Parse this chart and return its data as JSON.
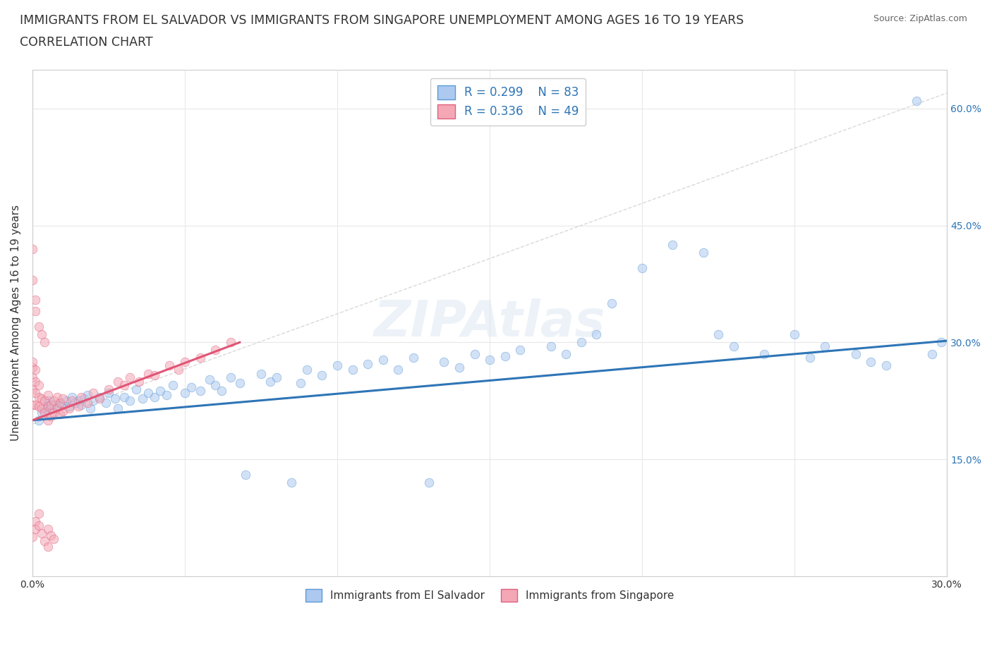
{
  "title_line1": "IMMIGRANTS FROM EL SALVADOR VS IMMIGRANTS FROM SINGAPORE UNEMPLOYMENT AMONG AGES 16 TO 19 YEARS",
  "title_line2": "CORRELATION CHART",
  "source": "Source: ZipAtlas.com",
  "watermark": "ZIPAtlas",
  "ylabel": "Unemployment Among Ages 16 to 19 years",
  "xmin": 0.0,
  "xmax": 0.3,
  "ymin": 0.0,
  "ymax": 0.65,
  "ytick_vals": [
    0.15,
    0.3,
    0.45,
    0.6
  ],
  "ytick_labels": [
    "15.0%",
    "30.0%",
    "45.0%",
    "60.0%"
  ],
  "xtick_vals": [
    0.0,
    0.05,
    0.1,
    0.15,
    0.2,
    0.25,
    0.3
  ],
  "xtick_labels": [
    "0.0%",
    "",
    "",
    "",
    "",
    "",
    "30.0%"
  ],
  "el_salvador_color": "#adc9f0",
  "el_salvador_edge": "#5b9bd5",
  "singapore_color": "#f4a7b5",
  "singapore_edge": "#e06080",
  "el_salvador_line_color": "#2e75b6",
  "singapore_line_color": "#e05575",
  "el_salvador_R": 0.299,
  "el_salvador_N": 83,
  "singapore_R": 0.336,
  "singapore_N": 49,
  "legend_text_color": "#2e75b6",
  "legend_N_color": "#e05575",
  "ref_line_color": "#d0d0d0",
  "background_color": "#ffffff",
  "grid_color": "#e8e8e8",
  "title_fontsize": 12.5,
  "axis_label_fontsize": 11,
  "tick_fontsize": 10,
  "marker_size": 9,
  "marker_alpha": 0.55,
  "watermark_color": "#d8e4f0",
  "watermark_alpha": 0.45,
  "el_salvador_x": [
    0.002,
    0.003,
    0.004,
    0.005,
    0.005,
    0.006,
    0.007,
    0.008,
    0.009,
    0.01,
    0.011,
    0.012,
    0.013,
    0.014,
    0.015,
    0.016,
    0.017,
    0.018,
    0.019,
    0.02,
    0.022,
    0.024,
    0.025,
    0.027,
    0.028,
    0.03,
    0.032,
    0.034,
    0.036,
    0.038,
    0.04,
    0.042,
    0.044,
    0.046,
    0.05,
    0.052,
    0.055,
    0.058,
    0.06,
    0.062,
    0.065,
    0.068,
    0.07,
    0.075,
    0.078,
    0.08,
    0.085,
    0.088,
    0.09,
    0.095,
    0.1,
    0.105,
    0.11,
    0.115,
    0.12,
    0.125,
    0.13,
    0.135,
    0.14,
    0.145,
    0.15,
    0.155,
    0.16,
    0.17,
    0.175,
    0.18,
    0.185,
    0.19,
    0.2,
    0.21,
    0.22,
    0.225,
    0.23,
    0.24,
    0.25,
    0.255,
    0.26,
    0.27,
    0.275,
    0.28,
    0.29,
    0.295,
    0.298
  ],
  "el_salvador_y": [
    0.2,
    0.21,
    0.215,
    0.22,
    0.225,
    0.215,
    0.22,
    0.218,
    0.222,
    0.22,
    0.225,
    0.218,
    0.23,
    0.222,
    0.225,
    0.22,
    0.228,
    0.232,
    0.215,
    0.225,
    0.23,
    0.222,
    0.235,
    0.228,
    0.215,
    0.23,
    0.225,
    0.24,
    0.228,
    0.235,
    0.23,
    0.238,
    0.232,
    0.245,
    0.235,
    0.242,
    0.238,
    0.252,
    0.245,
    0.238,
    0.255,
    0.248,
    0.13,
    0.26,
    0.25,
    0.255,
    0.12,
    0.248,
    0.265,
    0.258,
    0.27,
    0.265,
    0.272,
    0.278,
    0.265,
    0.28,
    0.12,
    0.275,
    0.268,
    0.285,
    0.278,
    0.282,
    0.29,
    0.295,
    0.285,
    0.3,
    0.31,
    0.35,
    0.395,
    0.425,
    0.415,
    0.31,
    0.295,
    0.285,
    0.31,
    0.28,
    0.295,
    0.285,
    0.275,
    0.27,
    0.61,
    0.285,
    0.3
  ],
  "singapore_x": [
    0.0,
    0.0,
    0.0,
    0.0,
    0.0,
    0.001,
    0.001,
    0.001,
    0.001,
    0.002,
    0.002,
    0.002,
    0.003,
    0.003,
    0.004,
    0.004,
    0.005,
    0.005,
    0.005,
    0.006,
    0.006,
    0.007,
    0.007,
    0.008,
    0.008,
    0.009,
    0.009,
    0.01,
    0.01,
    0.012,
    0.013,
    0.015,
    0.016,
    0.018,
    0.02,
    0.022,
    0.025,
    0.028,
    0.03,
    0.032,
    0.035,
    0.038,
    0.04,
    0.045,
    0.048,
    0.05,
    0.055,
    0.06,
    0.065
  ],
  "singapore_y": [
    0.22,
    0.24,
    0.255,
    0.268,
    0.275,
    0.22,
    0.235,
    0.25,
    0.265,
    0.218,
    0.23,
    0.245,
    0.215,
    0.228,
    0.21,
    0.225,
    0.2,
    0.218,
    0.232,
    0.205,
    0.22,
    0.21,
    0.225,
    0.215,
    0.23,
    0.208,
    0.222,
    0.212,
    0.228,
    0.215,
    0.225,
    0.218,
    0.23,
    0.222,
    0.235,
    0.228,
    0.24,
    0.25,
    0.245,
    0.255,
    0.25,
    0.26,
    0.258,
    0.27,
    0.265,
    0.275,
    0.28,
    0.29,
    0.3
  ],
  "singapore_extra_y": [
    0.42,
    0.38,
    0.355,
    0.34,
    0.32,
    0.31,
    0.3,
    0.05,
    0.06,
    0.07,
    0.08,
    0.065,
    0.055,
    0.045,
    0.038,
    0.06,
    0.052,
    0.048
  ],
  "singapore_extra_x": [
    0.0,
    0.0,
    0.001,
    0.001,
    0.002,
    0.003,
    0.004,
    0.0,
    0.001,
    0.001,
    0.002,
    0.002,
    0.003,
    0.004,
    0.005,
    0.005,
    0.006,
    0.007
  ]
}
